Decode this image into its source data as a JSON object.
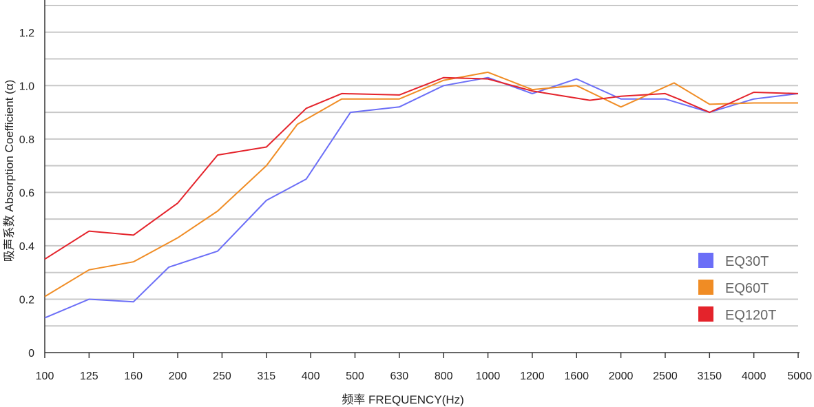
{
  "chart_data": {
    "type": "line",
    "title": "",
    "xlabel": "频率 FREQUENCY(Hz)",
    "ylabel": "吸声系数 Absorption Coefficient (α)",
    "ylim": [
      0,
      1.3
    ],
    "y_ticks": [
      {
        "value": 0,
        "label": "0"
      },
      {
        "value": 0.2,
        "label": "0.2"
      },
      {
        "value": 0.4,
        "label": "0.4"
      },
      {
        "value": 0.6,
        "label": "0.6"
      },
      {
        "value": 0.8,
        "label": "0.8"
      },
      {
        "value": 1.0,
        "label": "1.0"
      },
      {
        "value": 1.2,
        "label": "1.2"
      }
    ],
    "gridlines": [
      0.1,
      0.2,
      0.3,
      0.4,
      0.5,
      0.6,
      0.7,
      0.8,
      0.9,
      1.0,
      1.1,
      1.2,
      1.3
    ],
    "grid": true,
    "legend_position": "bottom-right",
    "categories": [
      "100",
      "125",
      "160",
      "200",
      "250",
      "315",
      "400",
      "500",
      "630",
      "800",
      "1000",
      "1200",
      "1600",
      "2000",
      "2500",
      "3150",
      "4000",
      "5000"
    ],
    "series": [
      {
        "name": "EQ30T",
        "color": "#6b6ef7",
        "points": [
          [
            0,
            0.13
          ],
          [
            1,
            0.2
          ],
          [
            2,
            0.19
          ],
          [
            2.8,
            0.32
          ],
          [
            3.9,
            0.38
          ],
          [
            5,
            0.57
          ],
          [
            5.9,
            0.65
          ],
          [
            6.9,
            0.9
          ],
          [
            8,
            0.92
          ],
          [
            9,
            1.0
          ],
          [
            10,
            1.03
          ],
          [
            11,
            0.97
          ],
          [
            12,
            1.025
          ],
          [
            13,
            0.95
          ],
          [
            14,
            0.95
          ],
          [
            15,
            0.9
          ],
          [
            16,
            0.95
          ],
          [
            17,
            0.97
          ]
        ]
      },
      {
        "name": "EQ60T",
        "color": "#f08c24",
        "points": [
          [
            0,
            0.21
          ],
          [
            1,
            0.31
          ],
          [
            2,
            0.34
          ],
          [
            3,
            0.43
          ],
          [
            3.9,
            0.53
          ],
          [
            5,
            0.7
          ],
          [
            5.7,
            0.855
          ],
          [
            6.7,
            0.95
          ],
          [
            8,
            0.95
          ],
          [
            9,
            1.02
          ],
          [
            10,
            1.05
          ],
          [
            11,
            0.985
          ],
          [
            12,
            1.0
          ],
          [
            13,
            0.92
          ],
          [
            14.2,
            1.01
          ],
          [
            15,
            0.93
          ],
          [
            16,
            0.935
          ],
          [
            17,
            0.935
          ]
        ]
      },
      {
        "name": "EQ120T",
        "color": "#e4232b",
        "points": [
          [
            0,
            0.35
          ],
          [
            1,
            0.455
          ],
          [
            2,
            0.44
          ],
          [
            3,
            0.56
          ],
          [
            3.9,
            0.74
          ],
          [
            5,
            0.77
          ],
          [
            5.9,
            0.915
          ],
          [
            6.7,
            0.97
          ],
          [
            8,
            0.965
          ],
          [
            9,
            1.03
          ],
          [
            10,
            1.025
          ],
          [
            11,
            0.98
          ],
          [
            12.3,
            0.945
          ],
          [
            13,
            0.96
          ],
          [
            14,
            0.97
          ],
          [
            14.3,
            0.95
          ],
          [
            15,
            0.9
          ],
          [
            16,
            0.975
          ],
          [
            17,
            0.97
          ]
        ]
      }
    ]
  }
}
